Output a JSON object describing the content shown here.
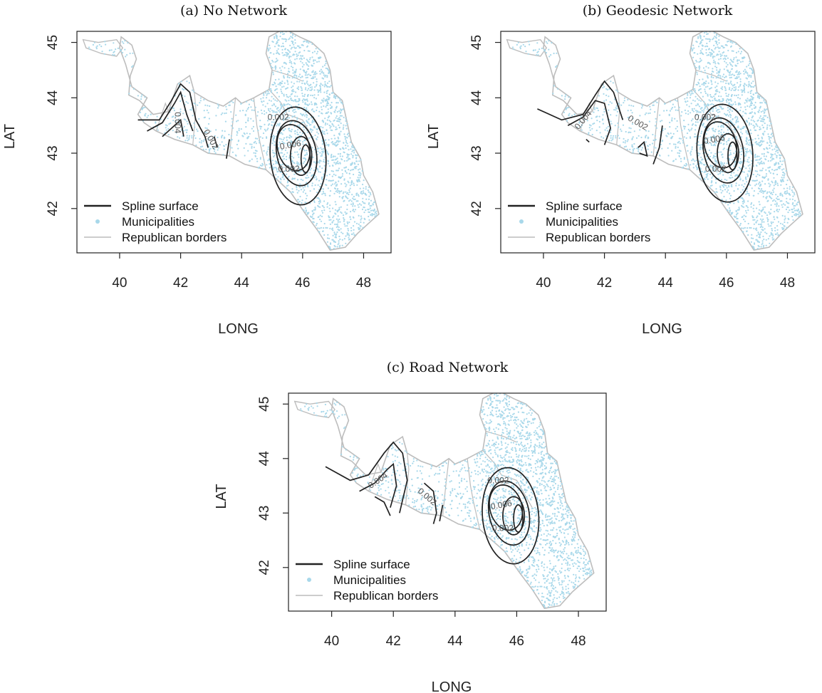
{
  "chart_data": [
    {
      "type": "contour-map",
      "title": "(a) No Network",
      "xlabel": "LONG",
      "ylabel": "LAT",
      "xticks": [
        40,
        42,
        44,
        46,
        48
      ],
      "yticks": [
        42,
        43,
        44,
        45
      ],
      "xlim": [
        38.6,
        48.9
      ],
      "ylim": [
        41.2,
        45.2
      ],
      "legend": {
        "placement": "bottom-left",
        "entries": [
          {
            "label": "Spline surface",
            "style": "line",
            "color": "#222222"
          },
          {
            "label": "Municipalities",
            "style": "point",
            "color": "#a8d8ea"
          },
          {
            "label": "Republican borders",
            "style": "line",
            "color": "#bbbbbb"
          }
        ]
      },
      "contour_labels": [
        {
          "text": "0.002",
          "x": 45.2,
          "y": 43.65,
          "angle": 0
        },
        {
          "text": "0.006",
          "x": 45.6,
          "y": 43.15,
          "angle": -10
        },
        {
          "text": "0.002",
          "x": 45.55,
          "y": 42.72,
          "angle": 0
        },
        {
          "text": "0.004",
          "x": 41.9,
          "y": 43.55,
          "angle": 90
        },
        {
          "text": "0.002",
          "x": 43.0,
          "y": 43.25,
          "angle": 60
        }
      ]
    },
    {
      "type": "contour-map",
      "title": "(b) Geodesic Network",
      "xlabel": "LONG",
      "ylabel": "LAT",
      "xticks": [
        40,
        42,
        44,
        46,
        48
      ],
      "yticks": [
        42,
        43,
        44,
        45
      ],
      "xlim": [
        38.6,
        48.9
      ],
      "ylim": [
        41.2,
        45.2
      ],
      "legend": {
        "placement": "bottom-left",
        "entries": [
          {
            "label": "Spline surface",
            "style": "line",
            "color": "#222222"
          },
          {
            "label": "Municipalities",
            "style": "point",
            "color": "#a8d8ea"
          },
          {
            "label": "Republican borders",
            "style": "line",
            "color": "#bbbbbb"
          }
        ]
      },
      "contour_labels": [
        {
          "text": "0.002",
          "x": 45.3,
          "y": 43.65,
          "angle": 0
        },
        {
          "text": "0.006",
          "x": 45.6,
          "y": 43.25,
          "angle": -10
        },
        {
          "text": "0.002",
          "x": 45.65,
          "y": 42.72,
          "angle": 0
        },
        {
          "text": "0.004",
          "x": 41.3,
          "y": 43.6,
          "angle": -50
        },
        {
          "text": "0.002",
          "x": 43.1,
          "y": 43.55,
          "angle": 30
        }
      ]
    },
    {
      "type": "contour-map",
      "title": "(c) Road Network",
      "xlabel": "LONG",
      "ylabel": "LAT",
      "xticks": [
        40,
        42,
        44,
        46,
        48
      ],
      "yticks": [
        42,
        43,
        44,
        45
      ],
      "xlim": [
        38.6,
        48.9
      ],
      "ylim": [
        41.2,
        45.2
      ],
      "legend": {
        "placement": "bottom-left",
        "entries": [
          {
            "label": "Spline surface",
            "style": "line",
            "color": "#222222"
          },
          {
            "label": "Municipalities",
            "style": "point",
            "color": "#a8d8ea"
          },
          {
            "label": "Republican borders",
            "style": "line",
            "color": "#bbbbbb"
          }
        ]
      },
      "contour_labels": [
        {
          "text": "0.002",
          "x": 45.4,
          "y": 43.6,
          "angle": 0
        },
        {
          "text": "0.006",
          "x": 45.5,
          "y": 43.15,
          "angle": -10
        },
        {
          "text": "0.002",
          "x": 45.55,
          "y": 42.72,
          "angle": 0
        },
        {
          "text": "0.004",
          "x": 41.5,
          "y": 43.6,
          "angle": -35
        },
        {
          "text": "0.002",
          "x": 43.1,
          "y": 43.3,
          "angle": 40
        }
      ]
    }
  ]
}
